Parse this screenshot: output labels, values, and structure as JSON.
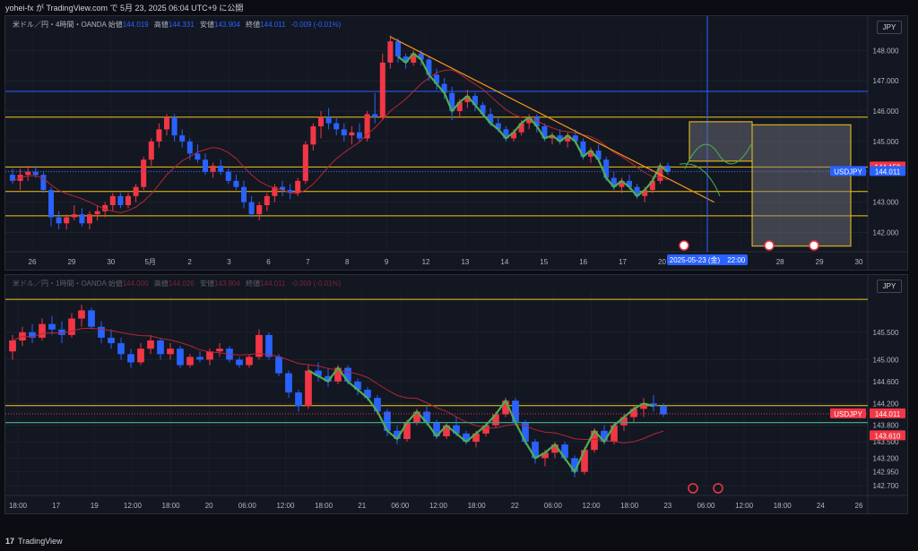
{
  "header": {
    "publish_line": "yohei-fx が TradingView.com で 5月 23, 2025 06:04 UTC+9 に公開"
  },
  "footer": {
    "brand": "TradingView",
    "brand_icon": "tv-logo-icon"
  },
  "colors": {
    "up": "#f23645",
    "down": "#2962ff",
    "ma": "#b22833",
    "level": "#f5c518",
    "trend": "#f7931a",
    "wave": "#4caf50",
    "bg": "#131722"
  },
  "pane_top": {
    "legend": {
      "symbol": "米ドル／円・4時間・OANDA",
      "open_label": "始値",
      "open": "144.019",
      "high_label": "高値",
      "high": "144.331",
      "low_label": "安値",
      "low": "143.904",
      "close_label": "終値",
      "close": "144.011",
      "change": "-0.009 (-0.01%)"
    },
    "unit_button": "JPY",
    "price_ticks": [
      "148.000",
      "147.000",
      "146.000",
      "145.000",
      "144.000",
      "143.000",
      "142.000"
    ],
    "price_badges": [
      {
        "text": "144.159",
        "color": "#f23645"
      },
      {
        "text": "USDJPY",
        "color": "#2962ff"
      },
      {
        "text": "144.011",
        "color": "#2962ff"
      }
    ],
    "date_ticks": [
      "26",
      "29",
      "30",
      "5月",
      "2",
      "3",
      "6",
      "7",
      "8",
      "9",
      "12",
      "13",
      "14",
      "15",
      "16",
      "17",
      "20",
      "21",
      "22",
      "28",
      "29",
      "30"
    ],
    "crosshair_label": "2025-05-23 (金)　22:00"
  },
  "pane_bottom": {
    "legend": {
      "symbol": "米ドル／円・1時間・OANDA",
      "open_label": "始値",
      "open": "144.000",
      "high_label": "高値",
      "high": "144.026",
      "low_label": "安値",
      "low": "143.904",
      "close_label": "終値",
      "close": "144.011",
      "change": "-0.009 (-0.01%)"
    },
    "unit_button": "JPY",
    "price_ticks": [
      "145.500",
      "145.000",
      "144.600",
      "144.200",
      "143.800",
      "143.500",
      "143.200",
      "142.950",
      "142.700"
    ],
    "price_badges": [
      {
        "text": "USDJPY",
        "color": "#f23645"
      },
      {
        "text": "144.011",
        "color": "#f23645"
      },
      {
        "text": "143.610",
        "color": "#f23645"
      }
    ],
    "time_ticks": [
      "18:00",
      "17",
      "19",
      "12:00",
      "18:00",
      "20",
      "06:00",
      "12:00",
      "18:00",
      "21",
      "06:00",
      "12:00",
      "18:00",
      "22",
      "06:00",
      "12:00",
      "18:00",
      "23",
      "06:00",
      "12:00",
      "18:00",
      "24",
      "26"
    ]
  },
  "chart_data": [
    {
      "type": "candlestick",
      "title": "米ドル／円・4時間・OANDA",
      "ylim": [
        141.6,
        148.6
      ],
      "candles": [
        [
          143.9,
          144.1,
          143.6,
          143.7
        ],
        [
          143.7,
          144.1,
          143.4,
          143.9
        ],
        [
          143.9,
          144.2,
          143.7,
          144.0
        ],
        [
          144.0,
          144.2,
          143.8,
          143.9
        ],
        [
          143.9,
          144.0,
          143.3,
          143.4
        ],
        [
          143.4,
          143.5,
          142.2,
          142.5
        ],
        [
          142.5,
          142.7,
          142.1,
          142.3
        ],
        [
          142.3,
          142.6,
          142.1,
          142.5
        ],
        [
          142.5,
          142.9,
          142.4,
          142.6
        ],
        [
          142.6,
          142.8,
          142.2,
          142.3
        ],
        [
          142.3,
          142.7,
          142.1,
          142.6
        ],
        [
          142.6,
          142.9,
          142.4,
          142.7
        ],
        [
          142.7,
          143.0,
          142.5,
          142.9
        ],
        [
          142.9,
          143.3,
          142.7,
          143.2
        ],
        [
          143.2,
          143.3,
          142.8,
          142.9
        ],
        [
          142.9,
          143.3,
          142.8,
          143.2
        ],
        [
          143.2,
          143.6,
          143.0,
          143.5
        ],
        [
          143.5,
          144.5,
          143.4,
          144.4
        ],
        [
          144.4,
          145.1,
          144.2,
          145.0
        ],
        [
          145.0,
          145.6,
          144.8,
          145.4
        ],
        [
          145.4,
          145.9,
          145.2,
          145.8
        ],
        [
          145.8,
          145.9,
          145.0,
          145.2
        ],
        [
          145.2,
          145.4,
          144.8,
          145.0
        ],
        [
          145.0,
          145.1,
          144.4,
          144.6
        ],
        [
          144.6,
          144.9,
          144.3,
          144.4
        ],
        [
          144.4,
          144.6,
          143.9,
          144.0
        ],
        [
          144.0,
          144.3,
          143.8,
          144.2
        ],
        [
          144.2,
          144.4,
          143.9,
          144.0
        ],
        [
          144.0,
          144.1,
          143.6,
          143.7
        ],
        [
          143.7,
          143.9,
          143.4,
          143.5
        ],
        [
          143.5,
          143.7,
          142.8,
          143.0
        ],
        [
          143.0,
          143.2,
          142.5,
          142.6
        ],
        [
          142.6,
          143.0,
          142.4,
          142.9
        ],
        [
          142.9,
          143.3,
          142.7,
          143.2
        ],
        [
          143.2,
          143.6,
          143.0,
          143.5
        ],
        [
          143.5,
          143.7,
          143.2,
          143.4
        ],
        [
          143.4,
          143.6,
          143.1,
          143.3
        ],
        [
          143.3,
          143.8,
          143.2,
          143.7
        ],
        [
          143.7,
          145.0,
          143.6,
          144.9
        ],
        [
          144.9,
          145.6,
          144.7,
          145.5
        ],
        [
          145.5,
          146.0,
          145.1,
          145.8
        ],
        [
          145.8,
          146.1,
          145.4,
          145.6
        ],
        [
          145.6,
          145.8,
          145.2,
          145.4
        ],
        [
          145.4,
          145.6,
          145.0,
          145.2
        ],
        [
          145.2,
          145.5,
          144.9,
          145.3
        ],
        [
          145.3,
          145.6,
          145.0,
          145.1
        ],
        [
          145.1,
          146.0,
          145.0,
          145.9
        ],
        [
          145.9,
          146.6,
          145.6,
          145.8
        ],
        [
          145.8,
          147.9,
          145.7,
          147.6
        ],
        [
          147.6,
          148.5,
          147.4,
          148.3
        ],
        [
          148.3,
          148.4,
          147.6,
          147.8
        ],
        [
          147.8,
          147.9,
          147.4,
          147.6
        ],
        [
          147.6,
          148.0,
          147.5,
          147.9
        ],
        [
          147.9,
          148.0,
          147.5,
          147.7
        ],
        [
          147.7,
          147.8,
          147.0,
          147.2
        ],
        [
          147.2,
          147.4,
          146.7,
          146.9
        ],
        [
          146.9,
          147.1,
          146.4,
          146.6
        ],
        [
          146.6,
          146.8,
          145.7,
          146.0
        ],
        [
          146.0,
          146.4,
          145.8,
          146.3
        ],
        [
          146.3,
          146.7,
          146.1,
          146.5
        ],
        [
          146.5,
          146.6,
          146.0,
          146.2
        ],
        [
          146.2,
          146.3,
          145.8,
          145.9
        ],
        [
          145.9,
          146.1,
          145.5,
          145.6
        ],
        [
          145.6,
          145.8,
          145.3,
          145.4
        ],
        [
          145.4,
          145.5,
          145.0,
          145.1
        ],
        [
          145.1,
          145.4,
          145.0,
          145.3
        ],
        [
          145.3,
          145.7,
          145.2,
          145.6
        ],
        [
          145.6,
          145.9,
          145.4,
          145.8
        ],
        [
          145.8,
          145.9,
          145.3,
          145.5
        ],
        [
          145.5,
          145.6,
          145.0,
          145.1
        ],
        [
          145.1,
          145.3,
          144.9,
          145.2
        ],
        [
          145.2,
          145.4,
          144.9,
          145.0
        ],
        [
          145.0,
          145.3,
          144.8,
          145.2
        ],
        [
          145.2,
          145.4,
          144.9,
          145.0
        ],
        [
          145.0,
          145.1,
          144.4,
          144.5
        ],
        [
          144.5,
          144.8,
          144.3,
          144.7
        ],
        [
          144.7,
          144.9,
          144.3,
          144.4
        ],
        [
          144.4,
          144.5,
          143.7,
          143.8
        ],
        [
          143.8,
          144.0,
          143.4,
          143.5
        ],
        [
          143.5,
          143.8,
          143.3,
          143.7
        ],
        [
          143.7,
          143.9,
          143.4,
          143.5
        ],
        [
          143.5,
          143.6,
          143.1,
          143.2
        ],
        [
          143.2,
          143.5,
          143.0,
          143.4
        ],
        [
          143.4,
          143.8,
          143.3,
          143.7
        ],
        [
          143.7,
          144.3,
          143.6,
          144.2
        ],
        [
          144.2,
          144.3,
          143.9,
          144.0
        ]
      ],
      "horizontal_levels": [
        146.65,
        145.8,
        144.159,
        143.35,
        142.55
      ],
      "last_price": 144.011
    },
    {
      "type": "candlestick",
      "title": "米ドル／円・1時間・OANDA",
      "ylim": [
        142.65,
        146.25
      ],
      "candles": [
        [
          145.15,
          145.45,
          145.0,
          145.35
        ],
        [
          145.35,
          145.6,
          145.25,
          145.5
        ],
        [
          145.5,
          145.65,
          145.3,
          145.4
        ],
        [
          145.4,
          145.75,
          145.35,
          145.65
        ],
        [
          145.65,
          145.8,
          145.45,
          145.55
        ],
        [
          145.55,
          145.7,
          145.3,
          145.45
        ],
        [
          145.45,
          145.85,
          145.4,
          145.75
        ],
        [
          145.75,
          146.0,
          145.6,
          145.9
        ],
        [
          145.9,
          145.95,
          145.55,
          145.6
        ],
        [
          145.6,
          145.7,
          145.3,
          145.4
        ],
        [
          145.4,
          145.55,
          145.2,
          145.3
        ],
        [
          145.3,
          145.4,
          145.0,
          145.1
        ],
        [
          145.1,
          145.2,
          144.85,
          144.95
        ],
        [
          144.95,
          145.3,
          144.9,
          145.2
        ],
        [
          145.2,
          145.45,
          145.1,
          145.35
        ],
        [
          145.35,
          145.4,
          145.0,
          145.1
        ],
        [
          145.1,
          145.3,
          145.0,
          145.2
        ],
        [
          145.2,
          145.25,
          144.85,
          144.9
        ],
        [
          144.9,
          145.1,
          144.85,
          145.05
        ],
        [
          145.05,
          145.15,
          144.95,
          145.0
        ],
        [
          145.0,
          145.2,
          144.9,
          145.15
        ],
        [
          145.15,
          145.3,
          145.05,
          145.2
        ],
        [
          145.2,
          145.25,
          144.95,
          145.0
        ],
        [
          145.0,
          145.05,
          144.85,
          144.9
        ],
        [
          144.9,
          145.1,
          144.85,
          145.05
        ],
        [
          145.05,
          145.55,
          145.0,
          145.45
        ],
        [
          145.45,
          145.5,
          145.0,
          145.05
        ],
        [
          145.05,
          145.1,
          144.7,
          144.75
        ],
        [
          144.75,
          144.8,
          144.3,
          144.4
        ],
        [
          144.4,
          144.45,
          144.05,
          144.15
        ],
        [
          144.15,
          144.9,
          144.1,
          144.8
        ],
        [
          144.8,
          144.95,
          144.6,
          144.7
        ],
        [
          144.7,
          144.85,
          144.5,
          144.6
        ],
        [
          144.6,
          144.9,
          144.55,
          144.85
        ],
        [
          144.85,
          144.9,
          144.55,
          144.6
        ],
        [
          144.6,
          144.65,
          144.35,
          144.45
        ],
        [
          144.45,
          144.5,
          144.25,
          144.3
        ],
        [
          144.3,
          144.35,
          144.0,
          144.05
        ],
        [
          144.05,
          144.1,
          143.6,
          143.7
        ],
        [
          143.7,
          143.8,
          143.45,
          143.55
        ],
        [
          143.55,
          143.9,
          143.5,
          143.85
        ],
        [
          143.85,
          144.1,
          143.8,
          144.05
        ],
        [
          144.05,
          144.15,
          143.8,
          143.85
        ],
        [
          143.85,
          143.9,
          143.55,
          143.6
        ],
        [
          143.6,
          143.85,
          143.55,
          143.8
        ],
        [
          143.8,
          143.95,
          143.6,
          143.65
        ],
        [
          143.65,
          143.7,
          143.45,
          143.5
        ],
        [
          143.5,
          143.7,
          143.4,
          143.65
        ],
        [
          143.65,
          143.85,
          143.6,
          143.8
        ],
        [
          143.8,
          144.05,
          143.75,
          144.0
        ],
        [
          144.0,
          144.3,
          143.95,
          144.25
        ],
        [
          144.25,
          144.3,
          143.8,
          143.85
        ],
        [
          143.85,
          143.9,
          143.45,
          143.5
        ],
        [
          143.5,
          143.55,
          143.1,
          143.2
        ],
        [
          143.2,
          143.35,
          143.05,
          143.3
        ],
        [
          143.3,
          143.5,
          143.2,
          143.45
        ],
        [
          143.45,
          143.5,
          143.15,
          143.2
        ],
        [
          143.2,
          143.25,
          142.85,
          142.95
        ],
        [
          142.95,
          143.4,
          142.9,
          143.35
        ],
        [
          143.35,
          143.75,
          143.3,
          143.7
        ],
        [
          143.7,
          143.8,
          143.45,
          143.5
        ],
        [
          143.5,
          143.85,
          143.45,
          143.8
        ],
        [
          143.8,
          144.0,
          143.7,
          143.95
        ],
        [
          143.95,
          144.15,
          143.85,
          144.1
        ],
        [
          144.1,
          144.3,
          143.95,
          144.2
        ],
        [
          144.2,
          144.35,
          144.05,
          144.15
        ],
        [
          144.15,
          144.2,
          143.95,
          144.0
        ]
      ],
      "horizontal_levels": [
        146.1,
        144.159,
        143.85
      ],
      "last_price": 144.011,
      "badge_level": 143.61
    }
  ]
}
